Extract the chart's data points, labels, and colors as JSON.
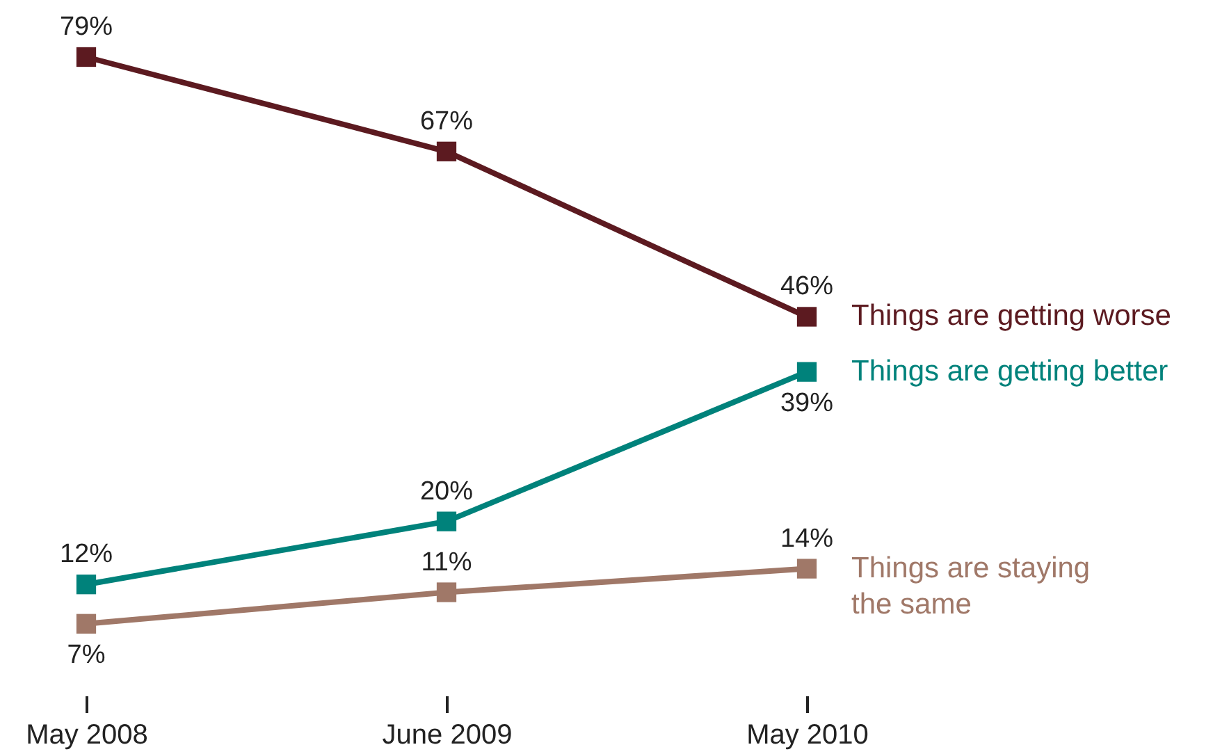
{
  "chart_data": {
    "type": "line",
    "categories": [
      "May 2008",
      "June 2009",
      "May 2010"
    ],
    "series": [
      {
        "name": "Things are getting worse",
        "color": "#5c1a20",
        "values": [
          79,
          67,
          46
        ],
        "value_labels": [
          "79%",
          "67%",
          "46%"
        ]
      },
      {
        "name": "Things are getting better",
        "color": "#00827b",
        "values": [
          12,
          20,
          39
        ],
        "value_labels": [
          "12%",
          "20%",
          "39%"
        ]
      },
      {
        "name": "Things are staying the same",
        "color": "#a07868",
        "values": [
          7,
          11,
          14
        ],
        "value_labels": [
          "7%",
          "11%",
          "14%"
        ]
      }
    ],
    "marker": "square",
    "line_style": "solid",
    "grid": false,
    "legend": "right"
  }
}
